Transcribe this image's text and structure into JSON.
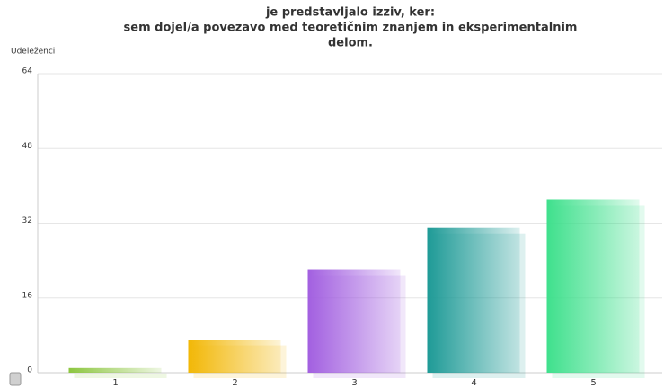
{
  "chart_data": {
    "type": "bar",
    "title": [
      "je predstavljalo izziv,  ker:",
      "sem dojel/a  povezavo med teoretičnim znanjem in eksperimentalnim",
      "delom."
    ],
    "y_label": "Udeleženci",
    "categories": [
      "1",
      "2",
      "3",
      "4",
      "5"
    ],
    "values": [
      1,
      7,
      22,
      31,
      37
    ],
    "colors": [
      "#8cc63f",
      "#f2b705",
      "#a25fe0",
      "#1d9a96",
      "#3ee08c"
    ],
    "ylim": [
      0,
      64
    ],
    "yticks": [
      0,
      16,
      32,
      48,
      64
    ],
    "grid": true
  }
}
